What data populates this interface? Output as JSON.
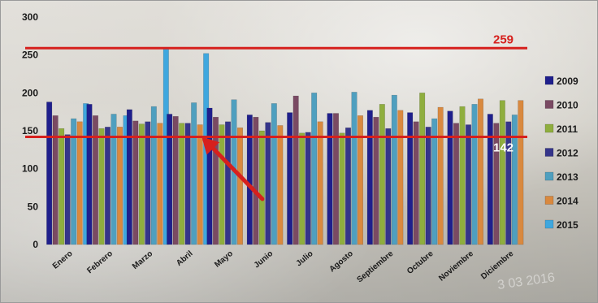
{
  "chart_data": {
    "type": "bar",
    "categories": [
      "Enero",
      "Febrero",
      "Marzo",
      "Abril",
      "Mayo",
      "Junio",
      "Julio",
      "Agosto",
      "Septiembre",
      "Octubre",
      "Noviembre",
      "Diciembre"
    ],
    "ylim": [
      0,
      300
    ],
    "yticks": [
      0,
      50,
      100,
      150,
      200,
      250,
      300
    ],
    "series": [
      {
        "name": "2009",
        "color": "#1f1f8c",
        "values": [
          188,
          185,
          178,
          172,
          180,
          171,
          174,
          173,
          177,
          174,
          176,
          172
        ]
      },
      {
        "name": "2010",
        "color": "#7a4a63",
        "values": [
          170,
          170,
          163,
          169,
          168,
          168,
          196,
          173,
          168,
          162,
          160,
          160
        ]
      },
      {
        "name": "2011",
        "color": "#8fae3e",
        "values": [
          153,
          153,
          159,
          160,
          158,
          150,
          147,
          147,
          185,
          200,
          182,
          190
        ]
      },
      {
        "name": "2012",
        "color": "#35358a",
        "values": [
          145,
          155,
          162,
          160,
          162,
          161,
          148,
          154,
          153,
          155,
          158,
          162
        ]
      },
      {
        "name": "2013",
        "color": "#4f9fbf",
        "values": [
          166,
          172,
          182,
          187,
          191,
          186,
          200,
          201,
          197,
          166,
          185,
          171
        ]
      },
      {
        "name": "2014",
        "color": "#d9893f",
        "values": [
          162,
          155,
          160,
          158,
          154,
          157,
          162,
          170,
          177,
          181,
          192,
          190
        ]
      },
      {
        "name": "2015",
        "color": "#3fa7de",
        "values": [
          186,
          170,
          259,
          252,
          null,
          null,
          null,
          null,
          null,
          null,
          null,
          null
        ]
      }
    ],
    "reference_lines": [
      {
        "value": 259,
        "label": "259",
        "color": "#d6201d",
        "label_color": "#d6201d"
      },
      {
        "value": 142,
        "label": "142",
        "color": "#d6201d",
        "label_color": "#ffffff"
      }
    ],
    "annotations": [
      {
        "type": "arrow",
        "color": "#d6201d",
        "from": [
          "Mayo",
          142
        ],
        "to": [
          "Junio",
          60
        ]
      }
    ],
    "watermark": "3 03 2016",
    "grid": false,
    "legend_position": "right"
  }
}
